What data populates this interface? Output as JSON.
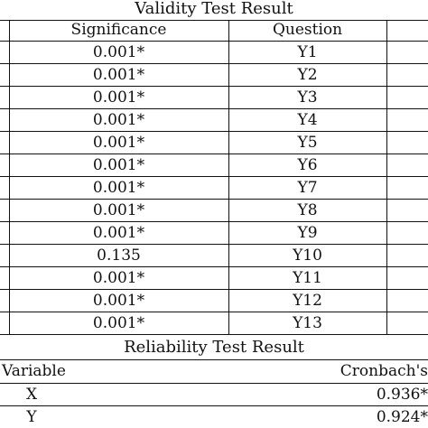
{
  "validity": {
    "title": "Validity Test Result",
    "headers": {
      "significance": "Significance",
      "question": "Question"
    },
    "rows": [
      {
        "significance": "0.001*",
        "question": "Y1"
      },
      {
        "significance": "0.001*",
        "question": "Y2"
      },
      {
        "significance": "0.001*",
        "question": "Y3"
      },
      {
        "significance": "0.001*",
        "question": "Y4"
      },
      {
        "significance": "0.001*",
        "question": "Y5"
      },
      {
        "significance": "0.001*",
        "question": "Y6"
      },
      {
        "significance": "0.001*",
        "question": "Y7"
      },
      {
        "significance": "0.001*",
        "question": "Y8"
      },
      {
        "significance": "0.001*",
        "question": "Y9"
      },
      {
        "significance": "0.135",
        "question": "Y10"
      },
      {
        "significance": "0.001*",
        "question": "Y11"
      },
      {
        "significance": "0.001*",
        "question": "Y12"
      },
      {
        "significance": "0.001*",
        "question": "Y13"
      }
    ]
  },
  "reliability": {
    "title": "Reliability Test Result",
    "headers": {
      "variable": "Variable",
      "cronbach": "Cronbach's"
    },
    "rows": [
      {
        "variable": "X",
        "cronbach": "0.936*"
      },
      {
        "variable": "Y",
        "cronbach": "0.924*"
      }
    ]
  }
}
